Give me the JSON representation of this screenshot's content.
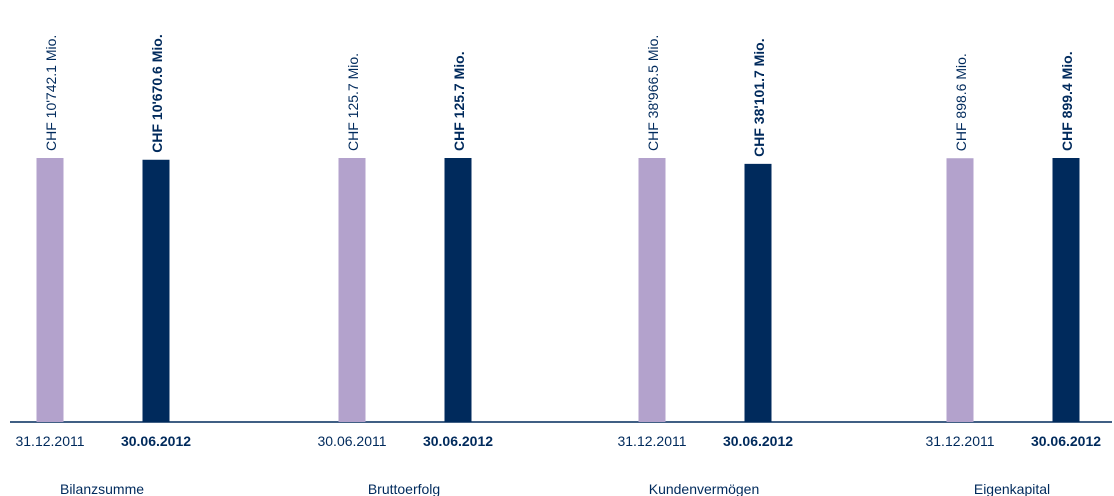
{
  "colors": {
    "previous": "#b3a2cc",
    "current": "#002a5c",
    "text": "#002a5c",
    "baseline": "#002a5c"
  },
  "chart_data": {
    "type": "bar",
    "note_scale": "Each panel's bars are scaled independently; displayed heights are relative within a panel.",
    "groups": [
      {
        "category": "Bilanzsumme",
        "bars": [
          {
            "date": "31.12.2011",
            "value": 10742.1,
            "label": "CHF 10'742.1 Mio.",
            "series": "previous"
          },
          {
            "date": "30.06.2012",
            "value": 10670.6,
            "label": "CHF 10'670.6 Mio.",
            "series": "current"
          }
        ]
      },
      {
        "category": "Bruttoerfolg",
        "bars": [
          {
            "date": "30.06.2011",
            "value": 125.7,
            "label": "CHF 125.7 Mio.",
            "series": "previous"
          },
          {
            "date": "30.06.2012",
            "value": 125.7,
            "label": "CHF 125.7 Mio.",
            "series": "current"
          }
        ]
      },
      {
        "category": "Kundenvermögen",
        "bars": [
          {
            "date": "31.12.2011",
            "value": 38966.5,
            "label": "CHF 38'966.5 Mio.",
            "series": "previous"
          },
          {
            "date": "30.06.2012",
            "value": 38101.7,
            "label": "CHF 38'101.7 Mio.",
            "series": "current"
          }
        ]
      },
      {
        "category": "Eigenkapital",
        "bars": [
          {
            "date": "31.12.2011",
            "value": 898.6,
            "label": "CHF 898.6 Mio.",
            "series": "previous"
          },
          {
            "date": "30.06.2012",
            "value": 899.4,
            "label": "CHF 899.4 Mio.",
            "series": "current"
          }
        ]
      }
    ]
  }
}
